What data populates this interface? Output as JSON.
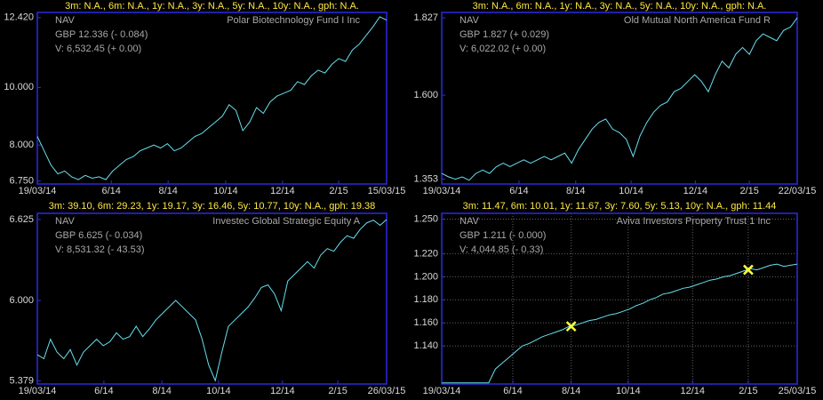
{
  "chart_data": [
    {
      "type": "line",
      "title": "3m: N.A., 6m: N.A., 1y: N.A., 3y: N.A., 5y: N.A., 10y: N.A., gph: N.A.",
      "fund_name": "Polar Biotechnology Fund I Inc",
      "annotations": [
        "GBP 12.336 (- 0.084)",
        "V: 6,532.45 (+ 0.00)"
      ],
      "series": [
        {
          "name": "NAV",
          "color": "#66e0f0",
          "values": [
            8.3,
            7.8,
            7.3,
            7.0,
            7.1,
            6.9,
            6.8,
            6.95,
            6.85,
            6.9,
            6.8,
            7.1,
            7.3,
            7.5,
            7.6,
            7.8,
            7.9,
            8.0,
            7.9,
            8.05,
            7.8,
            7.9,
            8.1,
            8.3,
            8.4,
            8.6,
            8.8,
            9.0,
            9.4,
            9.2,
            8.5,
            8.8,
            9.3,
            9.1,
            9.5,
            9.7,
            9.8,
            9.9,
            10.2,
            10.1,
            10.4,
            10.6,
            10.5,
            10.8,
            11.0,
            10.9,
            11.3,
            11.5,
            11.8,
            12.1,
            12.45,
            12.336
          ]
        }
      ],
      "xlim": [
        0,
        51
      ],
      "xticks": [
        {
          "value": 0,
          "label": "19/03/14"
        },
        {
          "value": 10.8,
          "label": "6/14"
        },
        {
          "value": 19.1,
          "label": "8/14"
        },
        {
          "value": 27.5,
          "label": "10/14"
        },
        {
          "value": 35.8,
          "label": "12/14"
        },
        {
          "value": 44,
          "label": "2/15"
        },
        {
          "value": 51,
          "label": "15/03/15"
        }
      ],
      "ylim": [
        6.65,
        12.6
      ],
      "yticks": [
        {
          "value": 6.75,
          "label": "6.750"
        },
        {
          "value": 8,
          "label": "8.000"
        },
        {
          "value": 10,
          "label": "10.000"
        },
        {
          "value": 12.42,
          "label": "12.420"
        }
      ],
      "grid": false
    },
    {
      "type": "line",
      "title": "3m: N.A., 6m: N.A., 1y: N.A., 3y: N.A., 5y: N.A., 10y: N.A., gph: N.A.",
      "fund_name": "Old Mutual North America Fund R",
      "annotations": [
        "GBP 1.827 (+ 0.029)",
        "V: 6,022.02 (+ 0.00)"
      ],
      "series": [
        {
          "name": "NAV",
          "color": "#66e0f0",
          "values": [
            1.37,
            1.36,
            1.353,
            1.36,
            1.35,
            1.37,
            1.38,
            1.37,
            1.39,
            1.4,
            1.39,
            1.4,
            1.41,
            1.4,
            1.41,
            1.42,
            1.41,
            1.42,
            1.43,
            1.4,
            1.44,
            1.47,
            1.5,
            1.52,
            1.53,
            1.5,
            1.49,
            1.47,
            1.42,
            1.48,
            1.52,
            1.55,
            1.57,
            1.58,
            1.61,
            1.62,
            1.64,
            1.66,
            1.64,
            1.61,
            1.66,
            1.7,
            1.68,
            1.72,
            1.74,
            1.72,
            1.76,
            1.78,
            1.77,
            1.76,
            1.79,
            1.8,
            1.827
          ]
        }
      ],
      "xlim": [
        0,
        52
      ],
      "xticks": [
        {
          "value": 0,
          "label": "19/03/14"
        },
        {
          "value": 11.3,
          "label": "6/14"
        },
        {
          "value": 19.6,
          "label": "8/14"
        },
        {
          "value": 27.7,
          "label": "10/14"
        },
        {
          "value": 37.1,
          "label": "12/14"
        },
        {
          "value": 45,
          "label": "2/15"
        },
        {
          "value": 52,
          "label": "22/03/15"
        }
      ],
      "ylim": [
        1.339,
        1.843
      ],
      "yticks": [
        {
          "value": 1.353,
          "label": "1.353"
        },
        {
          "value": 1.6,
          "label": "1.600"
        },
        {
          "value": 1.827,
          "label": "1.827"
        }
      ],
      "grid": false
    },
    {
      "type": "line",
      "title": "3m: 39.10, 6m: 29.23, 1y: 19.17, 3y: 16.46, 5y: 10.77, 10y: N.A., gph: 19.38",
      "fund_name": "Investec Global Strategic Equity A",
      "annotations": [
        "GBP 6.625 (- 0.034)",
        "V: 8,531.32 (- 43.53)"
      ],
      "series": [
        {
          "name": "NAV",
          "color": "#66e0f0",
          "values": [
            5.58,
            5.55,
            5.7,
            5.6,
            5.55,
            5.62,
            5.5,
            5.6,
            5.65,
            5.7,
            5.65,
            5.68,
            5.75,
            5.7,
            5.72,
            5.8,
            5.72,
            5.78,
            5.85,
            5.9,
            5.95,
            6.0,
            5.95,
            5.9,
            5.85,
            5.7,
            5.5,
            5.38,
            5.6,
            5.8,
            5.85,
            5.9,
            5.95,
            6.02,
            6.1,
            6.12,
            6.05,
            5.92,
            6.15,
            6.2,
            6.25,
            6.3,
            6.25,
            6.35,
            6.4,
            6.38,
            6.45,
            6.5,
            6.48,
            6.55,
            6.6,
            6.62,
            6.58,
            6.625
          ]
        }
      ],
      "xlim": [
        0,
        53
      ],
      "xticks": [
        {
          "value": 0,
          "label": "19/03/14"
        },
        {
          "value": 10.1,
          "label": "6/14"
        },
        {
          "value": 18.9,
          "label": "8/14"
        },
        {
          "value": 27.5,
          "label": "10/14"
        },
        {
          "value": 37.2,
          "label": "12/14"
        },
        {
          "value": 45.6,
          "label": "2/15"
        },
        {
          "value": 53,
          "label": "26/03/15"
        }
      ],
      "ylim": [
        5.354,
        6.673
      ],
      "yticks": [
        {
          "value": 5.379,
          "label": "5.379"
        },
        {
          "value": 6,
          "label": "6.000"
        },
        {
          "value": 6.625,
          "label": "6.625"
        }
      ],
      "grid": false
    },
    {
      "type": "line",
      "title": "3m: 11.47, 6m: 10.01, 1y: 11.67, 3y: 7.60, 5y: 5.13, 10y: N.A., gph: 11.44",
      "fund_name": "Aviva Investors Property Trust 1 Inc",
      "annotations": [
        "GBP 1.211 (- 0.000)",
        "V: 4,044.85 (- 0.33)"
      ],
      "series": [
        {
          "name": "NAV",
          "color": "#66e0f0",
          "values": [
            1.108,
            1.108,
            1.108,
            1.108,
            1.108,
            1.108,
            1.108,
            1.108,
            1.12,
            1.125,
            1.13,
            1.135,
            1.14,
            1.142,
            1.145,
            1.148,
            1.15,
            1.152,
            1.154,
            1.157,
            1.158,
            1.16,
            1.162,
            1.163,
            1.165,
            1.167,
            1.168,
            1.17,
            1.172,
            1.175,
            1.177,
            1.18,
            1.182,
            1.185,
            1.186,
            1.188,
            1.19,
            1.191,
            1.193,
            1.195,
            1.197,
            1.198,
            1.2,
            1.201,
            1.203,
            1.205,
            1.207,
            1.206,
            1.208,
            1.21,
            1.211,
            1.209,
            1.21,
            1.211
          ]
        }
      ],
      "markers": [
        {
          "x": 19.3,
          "y": 1.157,
          "color": "#ffff40"
        },
        {
          "x": 45.7,
          "y": 1.206,
          "color": "#ffff40"
        }
      ],
      "xlim": [
        0,
        53
      ],
      "xticks": [
        {
          "value": 0,
          "label": "19/03/14"
        },
        {
          "value": 10.6,
          "label": "6/14"
        },
        {
          "value": 19.3,
          "label": "8/14"
        },
        {
          "value": 27.8,
          "label": "10/14"
        },
        {
          "value": 37.4,
          "label": "12/14"
        },
        {
          "value": 45.7,
          "label": "2/15"
        },
        {
          "value": 53,
          "label": "25/03/15"
        }
      ],
      "ylim": [
        1.107,
        1.255
      ],
      "yticks": [
        {
          "value": 1.14,
          "label": "1.140"
        },
        {
          "value": 1.16,
          "label": "1.160"
        },
        {
          "value": 1.18,
          "label": "1.180"
        },
        {
          "value": 1.2,
          "label": "1.200"
        },
        {
          "value": 1.22,
          "label": "1.220"
        },
        {
          "value": 1.25,
          "label": "1.250"
        }
      ],
      "grid": true
    }
  ]
}
